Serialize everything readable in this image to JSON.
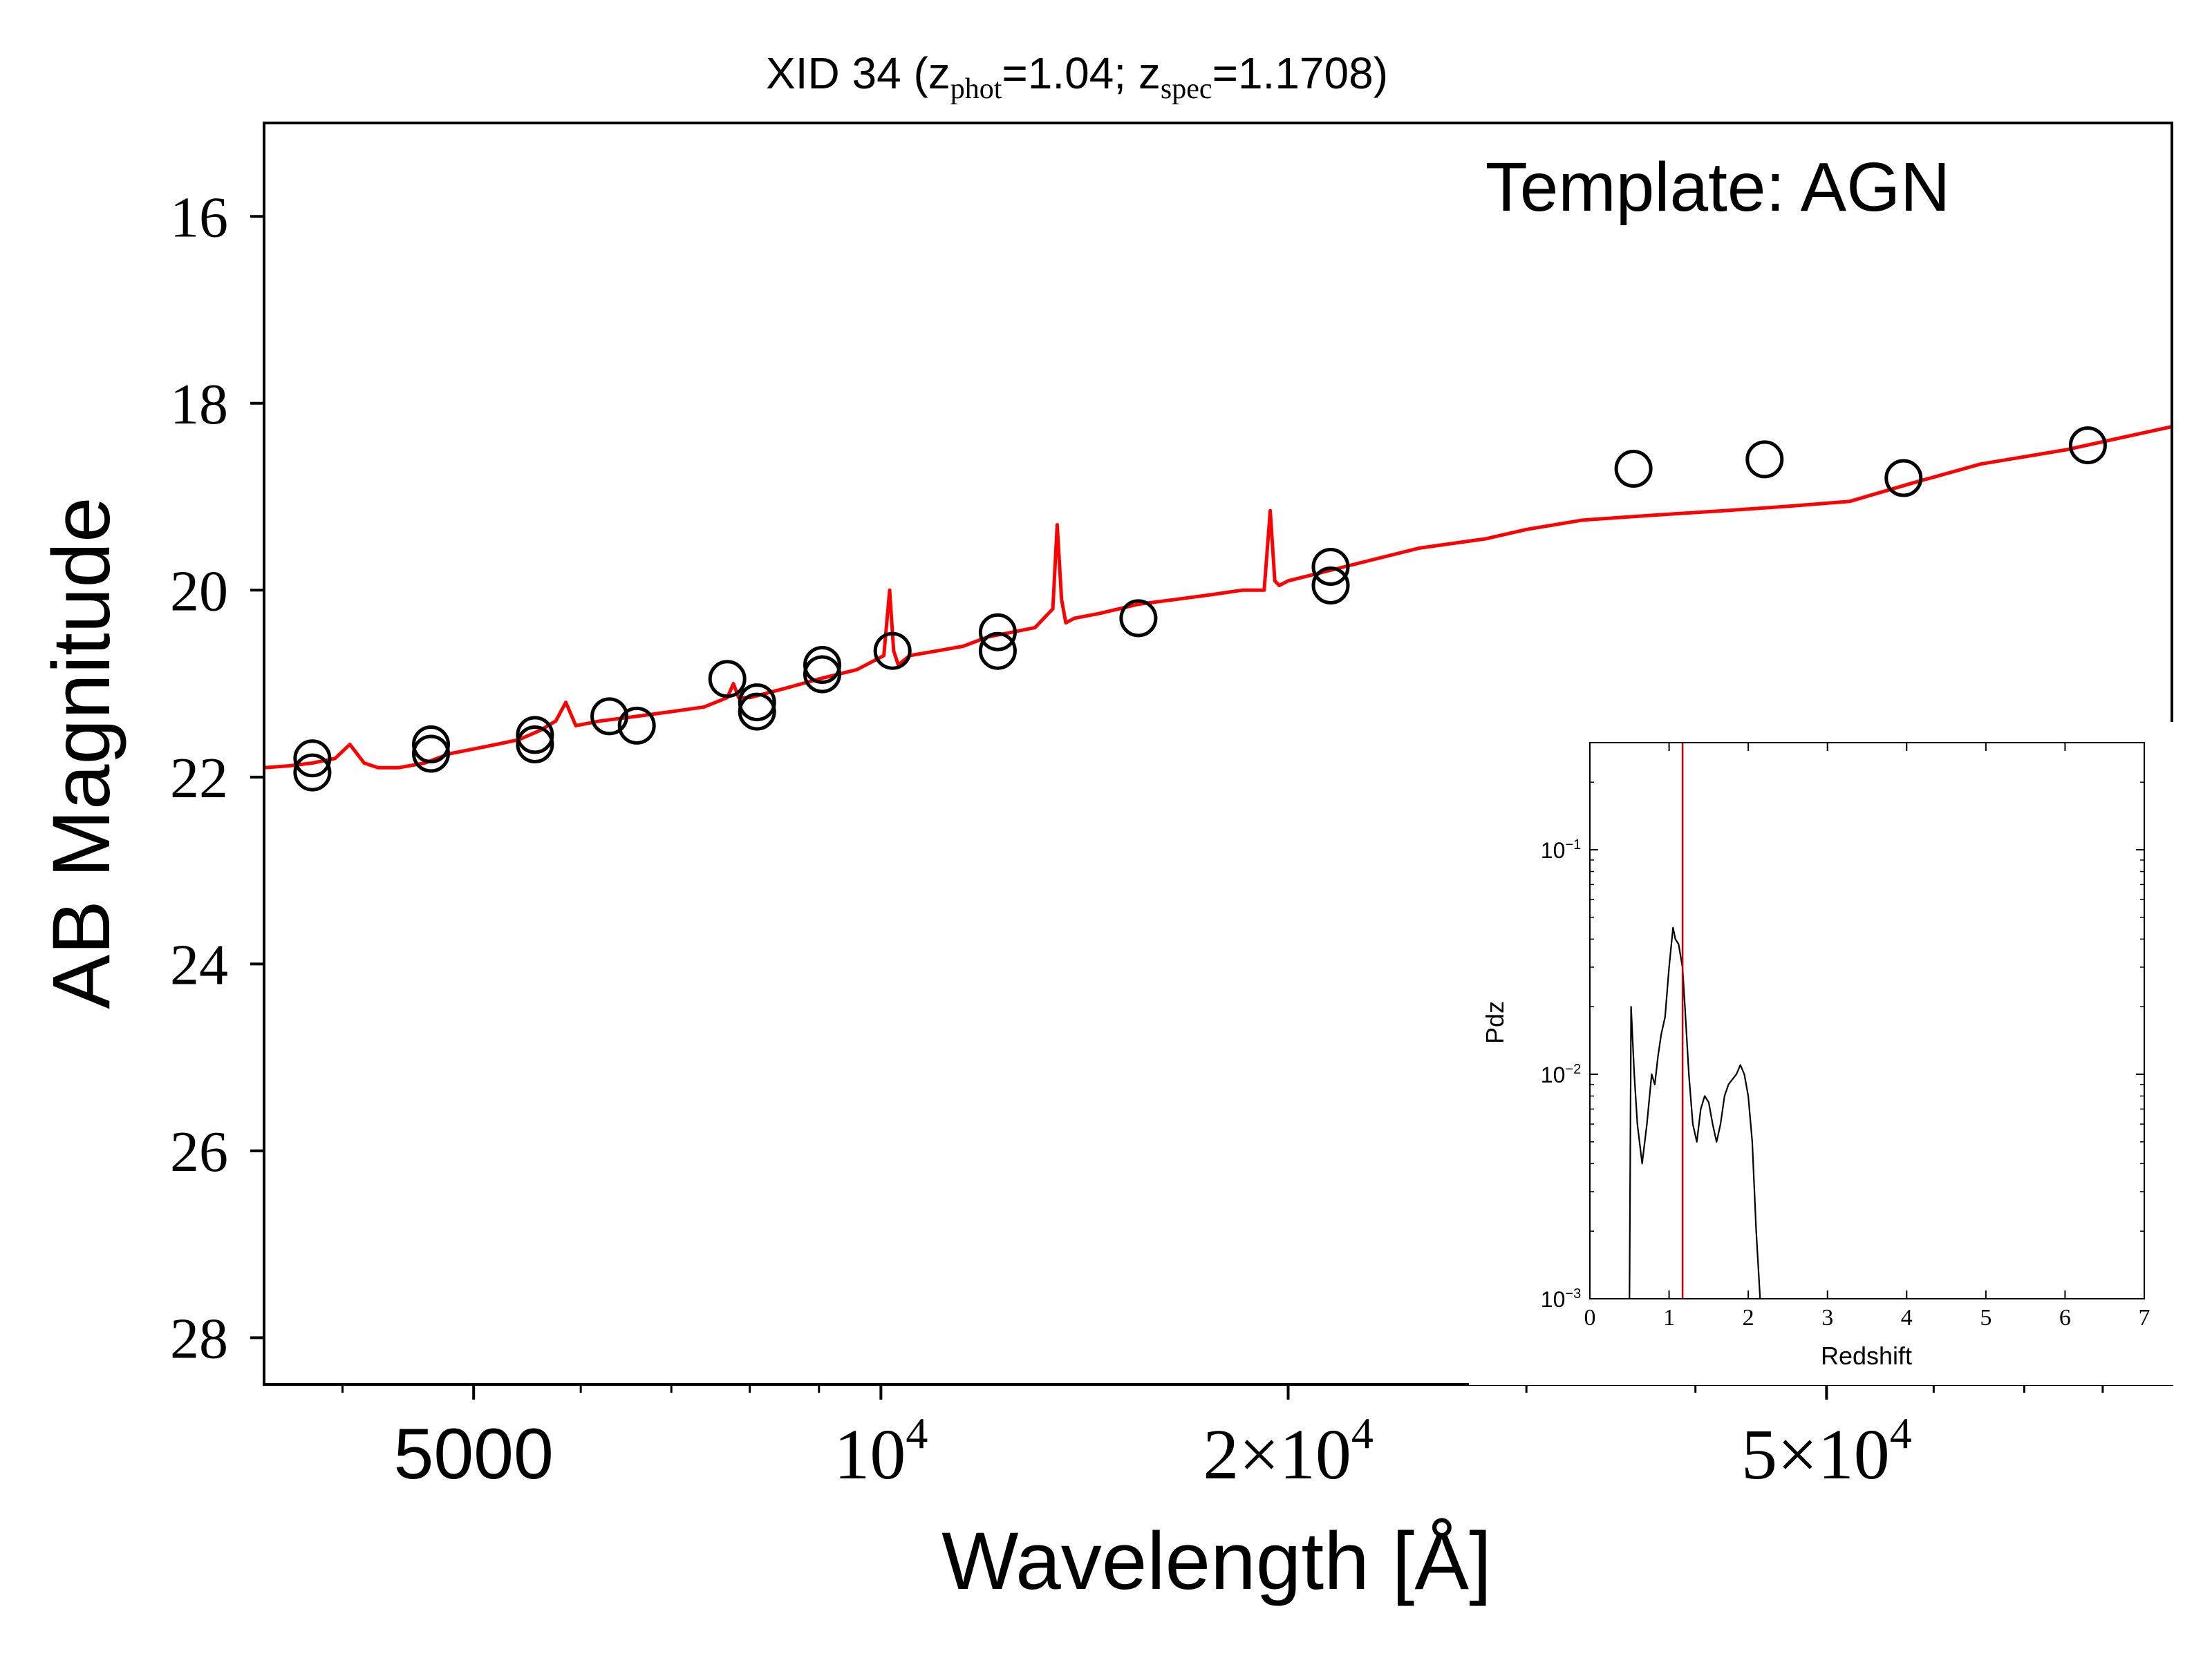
{
  "chart_data": [
    {
      "type": "scatter",
      "title": {
        "prefix": "XID 34 (z",
        "sub1": "phot",
        "mid": "=1.04; z",
        "sub2": "spec",
        "suffix": "=1.1708)"
      },
      "xlabel": "Wavelength [Å]",
      "ylabel": "AB Magnitude",
      "annotation": "Template: AGN",
      "x_scale": "log",
      "y_inverted": true,
      "xlim": [
        3500,
        90000
      ],
      "ylim": [
        15.0,
        28.5
      ],
      "yticks": [
        16,
        18,
        20,
        22,
        24,
        26,
        28
      ],
      "xticks": [
        {
          "value": 5000,
          "base": "5000",
          "exp": ""
        },
        {
          "value": 10000,
          "base": "10",
          "exp": "4"
        },
        {
          "value": 20000,
          "base": "2×10",
          "exp": "4"
        },
        {
          "value": 50000,
          "base": "5×10",
          "exp": "4"
        }
      ],
      "colors": {
        "model": "#ff0000",
        "points": "#000000"
      },
      "series": [
        {
          "kind": "points",
          "x": [
            3800,
            3800,
            4650,
            4650,
            5550,
            5550,
            6300,
            6600,
            7700,
            8100,
            8100,
            9050,
            9050,
            10200,
            12200,
            12200,
            15500,
            21500,
            21500,
            36000,
            45000,
            57000,
            78000
          ],
          "y": [
            21.8,
            21.95,
            21.65,
            21.75,
            21.55,
            21.65,
            21.35,
            21.45,
            20.95,
            21.2,
            21.3,
            20.8,
            20.9,
            20.65,
            20.45,
            20.65,
            20.3,
            19.75,
            19.95,
            18.7,
            18.6,
            18.8,
            18.45
          ]
        },
        {
          "kind": "line",
          "x": [
            3500,
            3650,
            3800,
            3950,
            4050,
            4150,
            4250,
            4400,
            4600,
            4800,
            5000,
            5200,
            5400,
            5600,
            5750,
            5850,
            5950,
            6200,
            6600,
            7000,
            7400,
            7700,
            7780,
            7850,
            8000,
            8500,
            9000,
            9600,
            10050,
            10150,
            10220,
            10300,
            10500,
            11000,
            11500,
            12000,
            12500,
            13000,
            13400,
            13500,
            13600,
            13700,
            13900,
            14500,
            15500,
            16500,
            17500,
            18500,
            19200,
            19400,
            19550,
            19700,
            20000,
            22000,
            25000,
            28000,
            30000,
            33000,
            37000,
            42000,
            47000,
            52000,
            58000,
            65000,
            75000,
            90000
          ],
          "y": [
            21.9,
            21.88,
            21.85,
            21.8,
            21.65,
            21.85,
            21.9,
            21.9,
            21.85,
            21.75,
            21.7,
            21.65,
            21.6,
            21.5,
            21.4,
            21.2,
            21.45,
            21.4,
            21.35,
            21.3,
            21.25,
            21.15,
            21.0,
            21.15,
            21.15,
            21.05,
            20.95,
            20.85,
            20.7,
            20.0,
            20.65,
            20.8,
            20.7,
            20.65,
            20.6,
            20.5,
            20.45,
            20.4,
            20.2,
            19.3,
            20.1,
            20.35,
            20.3,
            20.25,
            20.15,
            20.1,
            20.05,
            20.0,
            20.0,
            19.15,
            19.9,
            19.95,
            19.9,
            19.75,
            19.55,
            19.45,
            19.35,
            19.25,
            19.2,
            19.15,
            19.1,
            19.05,
            18.85,
            18.65,
            18.5,
            18.25
          ]
        }
      ]
    },
    {
      "type": "line",
      "xlabel": "Redshift",
      "ylabel": "Pdz",
      "y_scale": "log",
      "xlim": [
        0,
        7
      ],
      "ylim": [
        0.001,
        0.3
      ],
      "xticks": [
        0,
        1,
        2,
        3,
        4,
        5,
        6,
        7
      ],
      "yticks": [
        {
          "value": 0.1,
          "base": "10",
          "exp": "−1"
        },
        {
          "value": 0.01,
          "base": "10",
          "exp": "−2"
        },
        {
          "value": 0.001,
          "base": "10",
          "exp": "−3"
        }
      ],
      "colors": {
        "pdz": "#000000",
        "zspec_line": "#cc0000"
      },
      "zspec": 1.1708,
      "series": [
        {
          "name": "",
          "x": [
            0.5,
            0.52,
            0.56,
            0.6,
            0.66,
            0.72,
            0.78,
            0.82,
            0.86,
            0.9,
            0.95,
            1.0,
            1.05,
            1.08,
            1.12,
            1.17,
            1.2,
            1.25,
            1.3,
            1.35,
            1.4,
            1.45,
            1.5,
            1.55,
            1.6,
            1.65,
            1.7,
            1.75,
            1.8,
            1.85,
            1.9,
            1.95,
            2.0,
            2.05,
            2.1,
            2.15,
            2.16
          ],
          "y": [
            0.001,
            0.02,
            0.01,
            0.006,
            0.004,
            0.006,
            0.01,
            0.009,
            0.012,
            0.015,
            0.018,
            0.03,
            0.045,
            0.04,
            0.038,
            0.03,
            0.02,
            0.01,
            0.006,
            0.005,
            0.007,
            0.008,
            0.0075,
            0.006,
            0.005,
            0.006,
            0.008,
            0.009,
            0.0095,
            0.01,
            0.011,
            0.01,
            0.008,
            0.005,
            0.002,
            0.001,
            0.001
          ]
        }
      ]
    }
  ]
}
